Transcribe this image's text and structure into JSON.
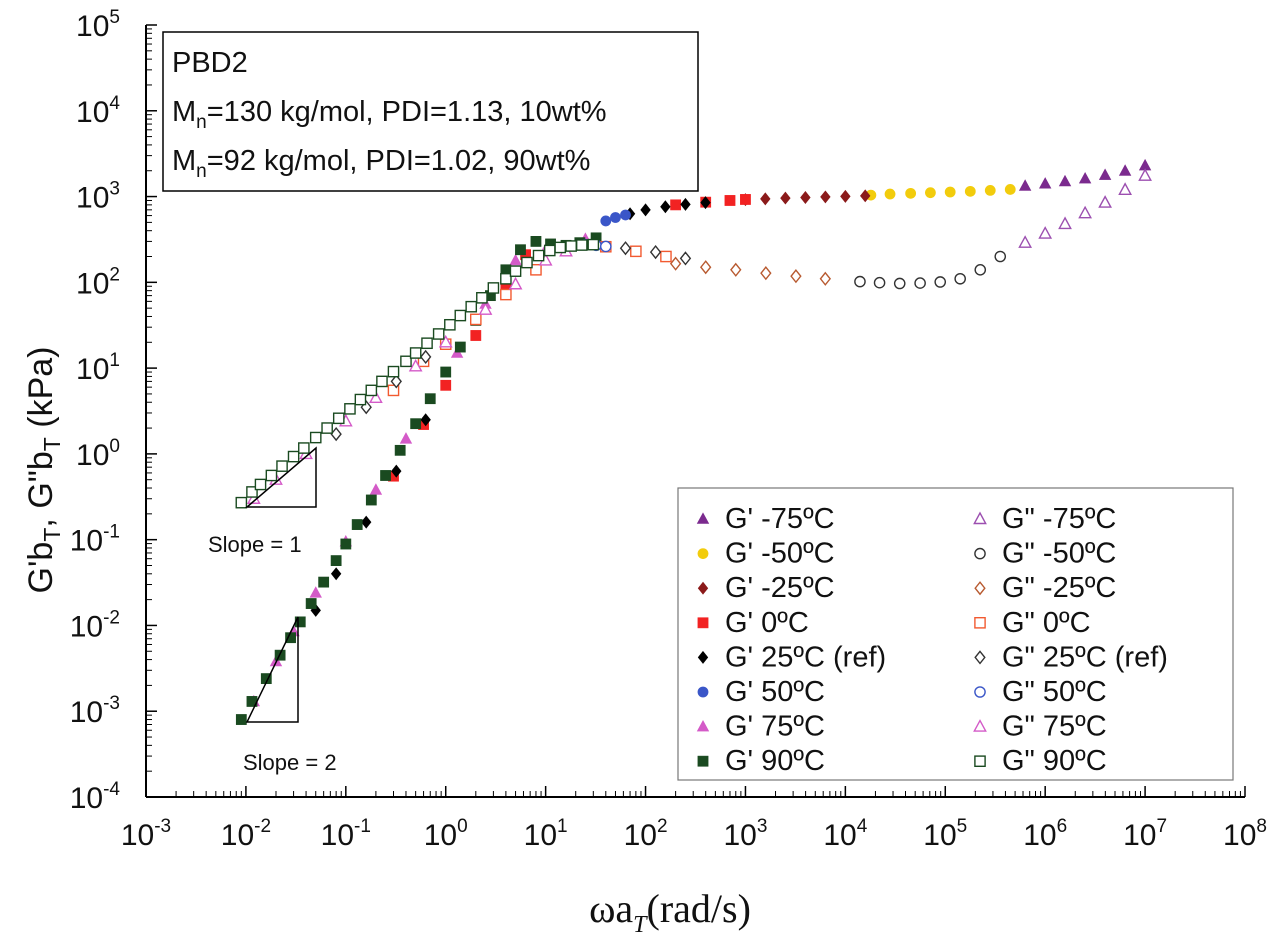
{
  "chart_data": {
    "type": "scatter",
    "xscale": "log",
    "yscale": "log",
    "xlim": [
      0.001,
      100000000
    ],
    "ylim": [
      0.0001,
      100000
    ],
    "grid": false,
    "legend_position": "bottom-right",
    "xlabel": {
      "main": "ωa",
      "sub": "T",
      "rest": "(rad/s)"
    },
    "ylabel": {
      "p1": "G'b",
      "s1": "T",
      "p2": ",  G\"b",
      "s2": "T",
      "p3": "  (kPa)"
    },
    "x_ticks": [
      {
        "base": "10",
        "exp": "-3"
      },
      {
        "base": "10",
        "exp": "-2"
      },
      {
        "base": "10",
        "exp": "-1"
      },
      {
        "base": "10",
        "exp": "0"
      },
      {
        "base": "10",
        "exp": "1"
      },
      {
        "base": "10",
        "exp": "2"
      },
      {
        "base": "10",
        "exp": "3"
      },
      {
        "base": "10",
        "exp": "4"
      },
      {
        "base": "10",
        "exp": "5"
      },
      {
        "base": "10",
        "exp": "6"
      },
      {
        "base": "10",
        "exp": "7"
      },
      {
        "base": "10",
        "exp": "8"
      }
    ],
    "y_ticks": [
      {
        "base": "10",
        "exp": "-4"
      },
      {
        "base": "10",
        "exp": "-3"
      },
      {
        "base": "10",
        "exp": "-2"
      },
      {
        "base": "10",
        "exp": "-1"
      },
      {
        "base": "10",
        "exp": "0"
      },
      {
        "base": "10",
        "exp": "1"
      },
      {
        "base": "10",
        "exp": "2"
      },
      {
        "base": "10",
        "exp": "3"
      },
      {
        "base": "10",
        "exp": "4"
      },
      {
        "base": "10",
        "exp": "5"
      }
    ],
    "info_box": {
      "title": "PBD2",
      "lines": [
        {
          "pre": "M",
          "sub": "n",
          "post": "=130 kg/mol, PDI=1.13, 10wt%"
        },
        {
          "pre": "M",
          "sub": "n",
          "post": "=92 kg/mol, PDI=1.02, 90wt%"
        }
      ]
    },
    "annotations": {
      "slope1": "Slope = 1",
      "slope2": "Slope = 2"
    },
    "series": [
      {
        "name": "G'   -75ºC",
        "modulus": "G'",
        "color": "#7B2A8E",
        "marker": "triangle",
        "filled": true,
        "x": [
          630000,
          1000000,
          1580000,
          2510000,
          3980000,
          6310000,
          10000000
        ],
        "y": [
          1330,
          1410,
          1500,
          1620,
          1780,
          1990,
          2300
        ]
      },
      {
        "name": "G'   -50ºC",
        "modulus": "G'",
        "color": "#F2CC0C",
        "marker": "circle",
        "filled": true,
        "x": [
          18000,
          28000,
          45000,
          71000,
          112000,
          178000,
          282000,
          447000
        ],
        "y": [
          1040,
          1070,
          1090,
          1110,
          1130,
          1150,
          1180,
          1210
        ]
      },
      {
        "name": "G'    -25ºC",
        "modulus": "G'",
        "color": "#8B1A1A",
        "marker": "diamond",
        "filled": true,
        "x": [
          1000,
          1580,
          2510,
          3980,
          6310,
          10000,
          15800
        ],
        "y": [
          920,
          940,
          960,
          975,
          990,
          1005,
          1020
        ]
      },
      {
        "name": "G'     0ºC",
        "modulus": "G'",
        "color": "#F22222",
        "marker": "square",
        "filled": true,
        "x": [
          0.3,
          0.6,
          1.0,
          2.0,
          4.0,
          6.3,
          200,
          400,
          700,
          1000
        ],
        "y": [
          0.55,
          2.2,
          6.3,
          24,
          95,
          210,
          800,
          860,
          900,
          925
        ]
      },
      {
        "name": "G'    25ºC (ref)",
        "modulus": "G'",
        "color": "#000000",
        "marker": "diamond",
        "filled": true,
        "x": [
          0.05,
          0.08,
          0.16,
          0.32,
          0.63,
          70,
          100,
          158,
          251,
          398
        ],
        "y": [
          0.015,
          0.04,
          0.16,
          0.63,
          2.5,
          630,
          700,
          760,
          810,
          850
        ]
      },
      {
        "name": "G'    50ºC",
        "modulus": "G'",
        "color": "#3A56C8",
        "marker": "circle",
        "filled": true,
        "x": [
          40,
          50,
          63
        ],
        "y": [
          520,
          570,
          610
        ]
      },
      {
        "name": "G'   75ºC",
        "modulus": "G'",
        "color": "#D45AC8",
        "marker": "triangle",
        "filled": true,
        "x": [
          0.012,
          0.02,
          0.03,
          0.05,
          0.1,
          0.2,
          0.4,
          1.3,
          2.5,
          5,
          10,
          25
        ],
        "y": [
          0.0013,
          0.0038,
          0.0085,
          0.024,
          0.095,
          0.38,
          1.5,
          15,
          56,
          180,
          240,
          320
        ]
      },
      {
        "name": "G'   90ºC",
        "modulus": "G'",
        "color": "#1A4A20",
        "marker": "square",
        "filled": true,
        "x": [
          0.009,
          0.0115,
          0.016,
          0.022,
          0.028,
          0.035,
          0.045,
          0.06,
          0.08,
          0.1,
          0.13,
          0.18,
          0.25,
          0.35,
          0.5,
          0.7,
          1.0,
          1.4,
          2.0,
          2.8,
          4.0,
          5.6,
          8.0,
          11.2,
          16,
          22,
          32
        ],
        "y": [
          0.0008,
          0.0013,
          0.0024,
          0.0045,
          0.0072,
          0.011,
          0.018,
          0.032,
          0.057,
          0.089,
          0.15,
          0.29,
          0.56,
          1.1,
          2.25,
          4.4,
          9,
          17.6,
          36,
          70,
          140,
          240,
          300,
          280,
          270,
          290,
          330
        ]
      },
      {
        "name": "G\"   -75ºC",
        "modulus": "G\"",
        "color": "#9C4FB0",
        "marker": "triangle",
        "filled": false,
        "x": [
          630000,
          1000000,
          1580000,
          2510000,
          3980000,
          6310000,
          10000000
        ],
        "y": [
          290,
          370,
          480,
          640,
          850,
          1200,
          1750
        ]
      },
      {
        "name": "G\"   -50ºC",
        "modulus": "G\"",
        "color": "#333333",
        "marker": "circle",
        "filled": false,
        "x": [
          14000,
          22000,
          35000,
          56000,
          89000,
          141000,
          224000,
          355000
        ],
        "y": [
          102,
          99,
          97,
          98,
          101,
          110,
          140,
          200
        ]
      },
      {
        "name": "G\"   -25ºC",
        "modulus": "G\"",
        "color": "#B85A30",
        "marker": "diamond",
        "filled": false,
        "x": [
          200,
          400,
          800,
          1600,
          3200,
          6300
        ],
        "y": [
          165,
          150,
          140,
          128,
          118,
          110
        ]
      },
      {
        "name": "G\"     0ºC",
        "modulus": "G\"",
        "color": "#F25A30",
        "marker": "square",
        "filled": false,
        "x": [
          0.3,
          0.6,
          1.0,
          2.0,
          4.0,
          8.0,
          40,
          80,
          160
        ],
        "y": [
          5.5,
          12,
          19,
          37,
          72,
          140,
          260,
          230,
          200
        ]
      },
      {
        "name": "G\"    25ºC (ref)",
        "modulus": "G\"",
        "color": "#333333",
        "marker": "diamond",
        "filled": false,
        "x": [
          0.08,
          0.16,
          0.32,
          0.63,
          63,
          126,
          251
        ],
        "y": [
          1.7,
          3.5,
          7,
          13.5,
          250,
          225,
          190
        ]
      },
      {
        "name": "G\"     50ºC",
        "modulus": "G\"",
        "color": "#3A56C8",
        "marker": "circle",
        "filled": false,
        "x": [
          25,
          32,
          40
        ],
        "y": [
          275,
          270,
          262
        ]
      },
      {
        "name": "G\"   75ºC",
        "modulus": "G\"",
        "color": "#D45AC8",
        "marker": "triangle",
        "filled": false,
        "x": [
          0.012,
          0.02,
          0.04,
          0.1,
          0.2,
          0.5,
          1.0,
          2.5,
          5,
          10,
          16
        ],
        "y": [
          0.3,
          0.5,
          1.0,
          2.4,
          4.5,
          10.5,
          20,
          48,
          95,
          180,
          230
        ]
      },
      {
        "name": "G\"   90ºC",
        "modulus": "G\"",
        "color": "#1A4A20",
        "marker": "square",
        "filled": false,
        "x": [
          0.009,
          0.0115,
          0.014,
          0.018,
          0.023,
          0.03,
          0.038,
          0.05,
          0.065,
          0.085,
          0.11,
          0.14,
          0.18,
          0.23,
          0.3,
          0.4,
          0.5,
          0.65,
          0.85,
          1.1,
          1.4,
          1.8,
          2.3,
          3.0,
          4.0,
          5.0,
          6.5,
          8.5,
          11,
          14,
          18,
          23,
          30
        ],
        "y": [
          0.27,
          0.36,
          0.44,
          0.56,
          0.72,
          0.93,
          1.17,
          1.55,
          2.0,
          2.6,
          3.35,
          4.3,
          5.5,
          7.0,
          9.1,
          12,
          15,
          19.5,
          25,
          32,
          41,
          52,
          66,
          86,
          110,
          135,
          170,
          205,
          235,
          255,
          265,
          272,
          275
        ]
      }
    ]
  }
}
